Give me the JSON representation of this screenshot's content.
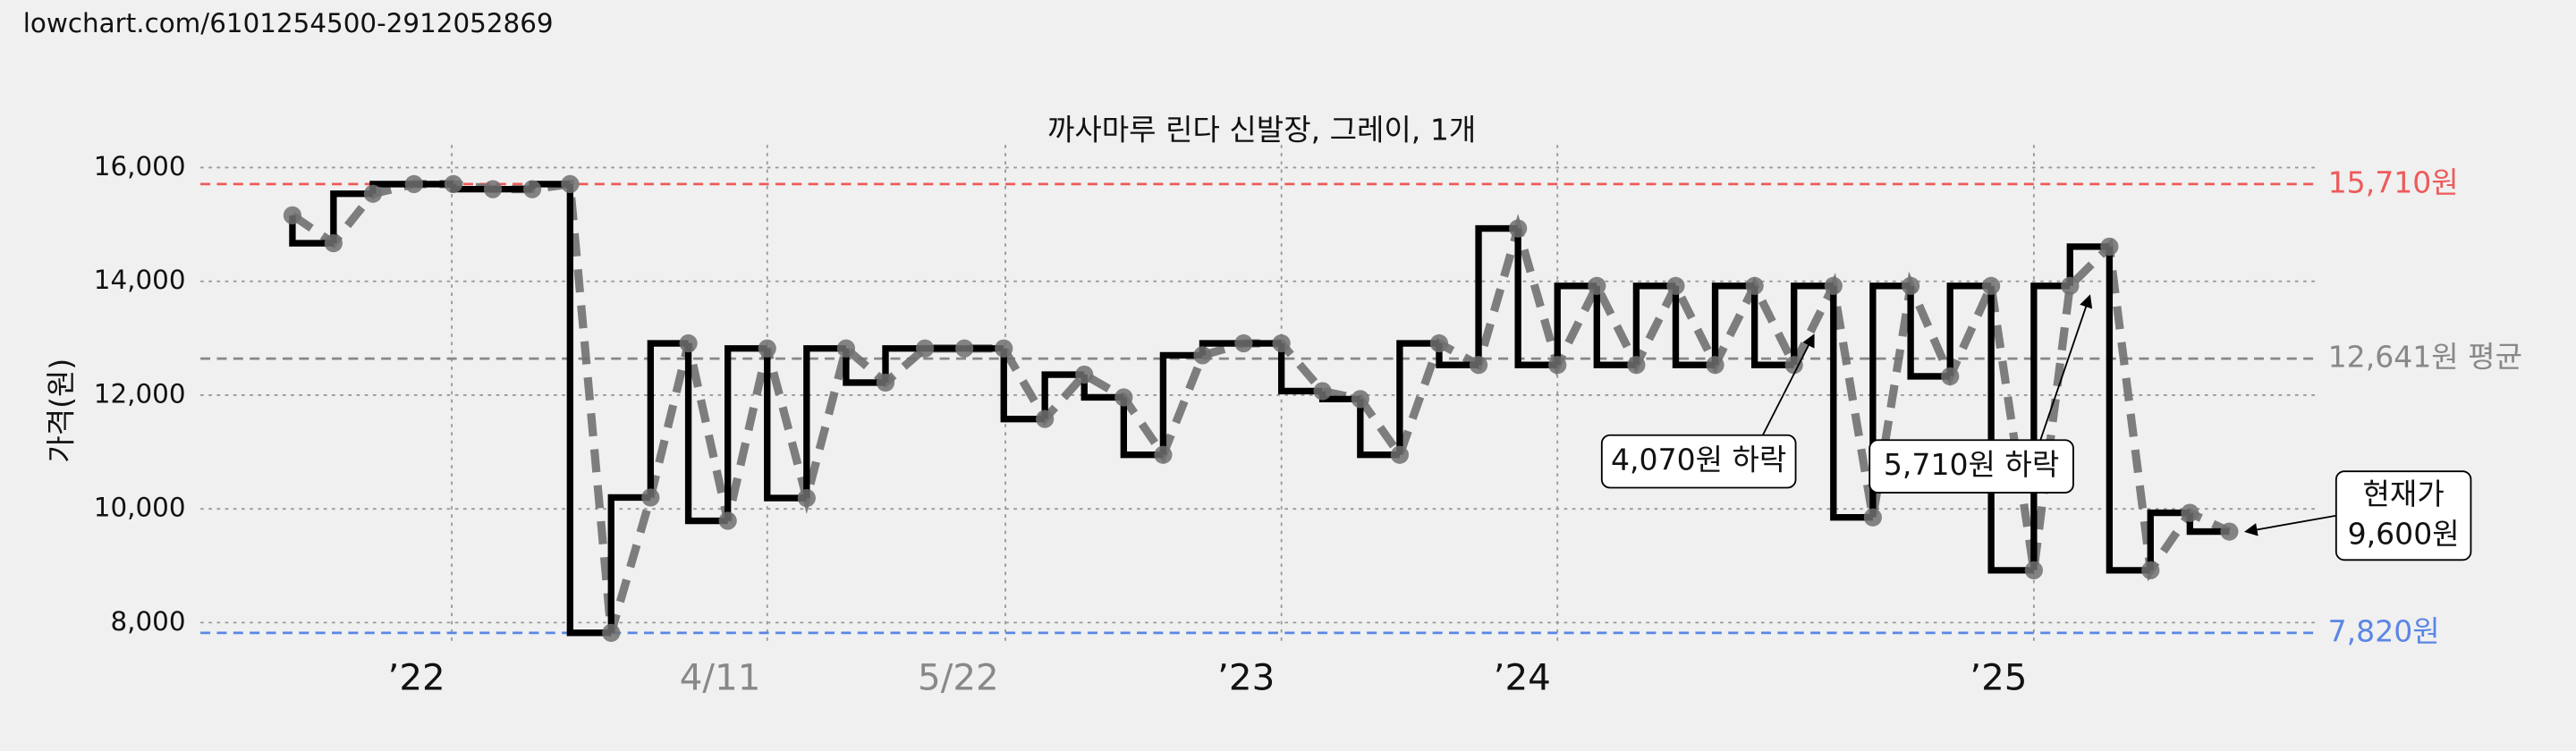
{
  "source_url": "lowchart.com/6101254500-2912052869",
  "chart_data": {
    "type": "line",
    "title": "까사마루 린다 신발장, 그레이, 1개",
    "ylabel": "가격(원)",
    "x": [
      56,
      81,
      105,
      130,
      154,
      178,
      202,
      225,
      250,
      274,
      297,
      321,
      345,
      369,
      393,
      417,
      441,
      465,
      489,
      514,
      538,
      562,
      586,
      610,
      635,
      658,
      683,
      706,
      730,
      754,
      778,
      802,
      826,
      850,
      874,
      898,
      922,
      946,
      970,
      994,
      1018,
      1041,
      1065,
      1090,
      1116,
      1138,
      1162,
      1187,
      1211,
      1235
    ],
    "values": [
      15160,
      14670,
      15540,
      15710,
      15710,
      15620,
      15620,
      15710,
      7820,
      10200,
      12910,
      9790,
      12820,
      10190,
      12820,
      12220,
      12820,
      12820,
      12820,
      11580,
      12360,
      11960,
      10950,
      12700,
      12910,
      12910,
      12070,
      11930,
      10950,
      12910,
      12530,
      14930,
      12530,
      13920,
      12530,
      13920,
      12530,
      13920,
      12530,
      13920,
      9850,
      13920,
      12330,
      13920,
      8920,
      13920,
      14610,
      8920,
      9930,
      9600
    ],
    "color": "#000000",
    "point_color": "#707070",
    "xlim": [
      0,
      1288
    ],
    "xticks": [
      {
        "value": 153,
        "label": "’22"
      },
      {
        "value": 345,
        "label": "4/11"
      },
      {
        "value": 490,
        "label": "5/22"
      },
      {
        "value": 658,
        "label": "’23"
      },
      {
        "value": 826,
        "label": "’24"
      },
      {
        "value": 1116,
        "label": "’25"
      }
    ],
    "ylim": [
      7600,
      16400
    ],
    "yticks": [
      {
        "value": 8000,
        "label": "8,000"
      },
      {
        "value": 10000,
        "label": "10,000"
      },
      {
        "value": 12000,
        "label": "12,000"
      },
      {
        "value": 14000,
        "label": "14,000"
      },
      {
        "value": 16000,
        "label": "16,000"
      }
    ],
    "grid": true,
    "reference_lines": [
      {
        "value": 15710,
        "label": "15,710원",
        "color": "#ee5a5a"
      },
      {
        "value": 12641,
        "label": "12,641원 평균",
        "color": "#888888"
      },
      {
        "value": 7820,
        "label": "7,820원",
        "color": "#5b86e5"
      }
    ],
    "annotations": [
      {
        "text": [
          "4,070원 하락"
        ],
        "point": 39
      },
      {
        "text": [
          "5,710원 하락"
        ],
        "point": 46
      },
      {
        "text": [
          "현재가",
          "9,600원"
        ],
        "point": 49
      }
    ]
  }
}
